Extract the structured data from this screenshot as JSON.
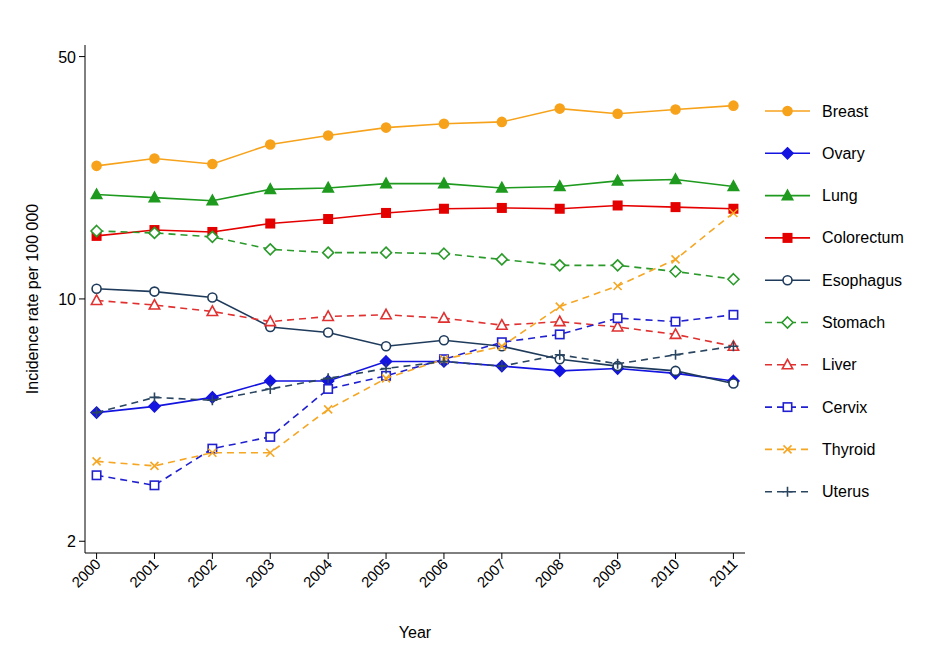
{
  "chart_data": {
    "type": "line",
    "x_label": "Year",
    "y_label": "Incidence rate per 100 000",
    "log": "y",
    "grid": false,
    "legend": "right",
    "x": [
      2000,
      2001,
      2002,
      2003,
      2004,
      2005,
      2006,
      2007,
      2008,
      2009,
      2010,
      2011
    ],
    "xlim": [
      1999.8,
      2011.2
    ],
    "xticks": [
      2000,
      2001,
      2002,
      2003,
      2004,
      2005,
      2006,
      2007,
      2008,
      2009,
      2010,
      2011
    ],
    "ylim": [
      1.85,
      54
    ],
    "yticks": [
      2,
      10,
      50
    ],
    "series": [
      {
        "name": "Breast",
        "color": "#f7a21b",
        "marker": "circle",
        "line_style": "solid",
        "values": [
          24.2,
          25.4,
          24.5,
          27.9,
          29.6,
          31.2,
          32.0,
          32.4,
          35.4,
          34.2,
          35.2,
          36.1
        ]
      },
      {
        "name": "Ovary",
        "color": "#1414e0",
        "marker": "diamond",
        "line_style": "solid",
        "values": [
          4.7,
          4.9,
          5.2,
          5.8,
          5.8,
          6.6,
          6.6,
          6.4,
          6.2,
          6.3,
          6.1,
          5.8
        ]
      },
      {
        "name": "Lung",
        "color": "#1e9a1e",
        "marker": "triangle",
        "line_style": "solid",
        "values": [
          20.0,
          19.6,
          19.2,
          20.7,
          20.9,
          21.5,
          21.5,
          20.9,
          21.1,
          21.9,
          22.1,
          21.1
        ]
      },
      {
        "name": "Colorectum",
        "color": "#e50000",
        "marker": "square",
        "line_style": "solid",
        "values": [
          15.2,
          15.8,
          15.6,
          16.5,
          17.0,
          17.7,
          18.2,
          18.3,
          18.2,
          18.6,
          18.4,
          18.2
        ]
      },
      {
        "name": "Esophagus",
        "color": "#1f3b5c",
        "marker": "circle-open",
        "line_style": "solid",
        "values": [
          10.7,
          10.5,
          10.1,
          8.3,
          8.0,
          7.3,
          7.6,
          7.3,
          6.7,
          6.4,
          6.2,
          5.7
        ]
      },
      {
        "name": "Stomach",
        "color": "#2a9a2a",
        "marker": "diamond-open",
        "line_style": "dash",
        "values": [
          15.7,
          15.5,
          15.1,
          13.9,
          13.6,
          13.6,
          13.5,
          13.0,
          12.5,
          12.5,
          12.0,
          11.4
        ]
      },
      {
        "name": "Liver",
        "color": "#e03030",
        "marker": "triangle-open",
        "line_style": "dash",
        "values": [
          9.9,
          9.6,
          9.2,
          8.6,
          8.9,
          9.0,
          8.8,
          8.4,
          8.6,
          8.3,
          7.9,
          7.3
        ]
      },
      {
        "name": "Cervix",
        "color": "#2020d0",
        "marker": "square-open",
        "line_style": "dash",
        "values": [
          3.1,
          2.9,
          3.7,
          4.0,
          5.5,
          6.0,
          6.7,
          7.5,
          7.9,
          8.8,
          8.6,
          9.0
        ]
      },
      {
        "name": "Thyroid",
        "color": "#f5a623",
        "marker": "x",
        "line_style": "dash",
        "values": [
          3.4,
          3.3,
          3.6,
          3.6,
          4.8,
          5.9,
          6.7,
          7.3,
          9.5,
          10.9,
          13.0,
          17.7
        ]
      },
      {
        "name": "Uterus",
        "color": "#2a4560",
        "marker": "plus",
        "line_style": "dash",
        "values": [
          4.7,
          5.2,
          5.1,
          5.5,
          5.9,
          6.3,
          6.6,
          6.4,
          6.9,
          6.5,
          6.9,
          7.3
        ]
      }
    ]
  }
}
